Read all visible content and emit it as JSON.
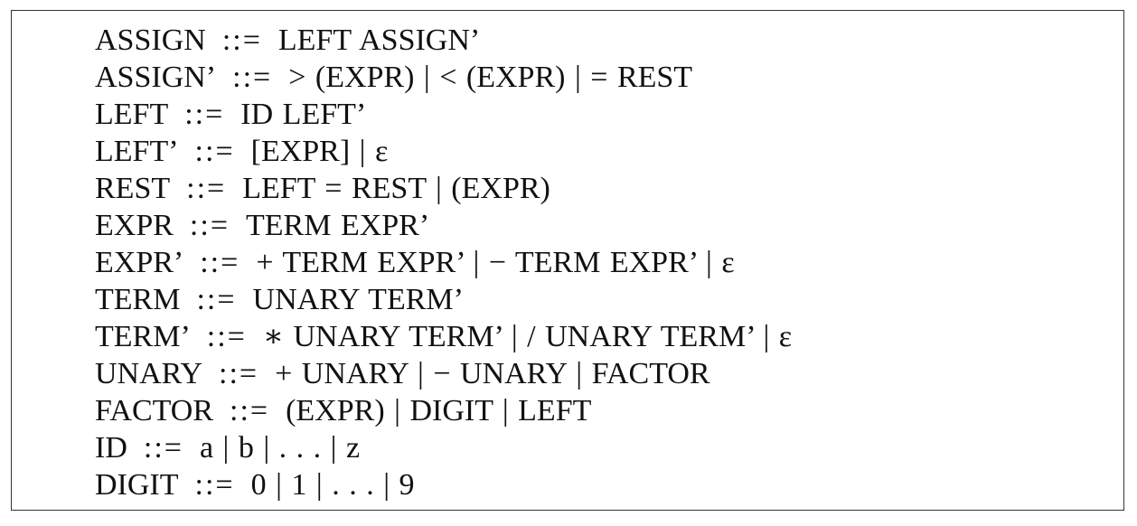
{
  "grammar": {
    "rules": [
      {
        "lhs": "ASSIGN",
        "op": "::=",
        "rhs": "LEFT  ASSIGN’"
      },
      {
        "lhs": "ASSIGN’",
        "op": "::=",
        "rhs": ">  (EXPR)   |  <  (EXPR)   |  =  REST"
      },
      {
        "lhs": "LEFT",
        "op": "::=",
        "rhs": "ID  LEFT’"
      },
      {
        "lhs": "LEFT’",
        "op": "::=",
        "rhs": "[EXPR]  |  ε"
      },
      {
        "lhs": "REST",
        "op": "::=",
        "rhs": "LEFT  =  REST  |  (EXPR)"
      },
      {
        "lhs": "EXPR",
        "op": "::=",
        "rhs": "TERM  EXPR’"
      },
      {
        "lhs": "EXPR’",
        "op": "::=",
        "rhs": "+  TERM  EXPR’   |  −  TERM  EXPR’   |  ε"
      },
      {
        "lhs": "TERM",
        "op": "::=",
        "rhs": "UNARY  TERM’"
      },
      {
        "lhs": "TERM’",
        "op": "::=",
        "rhs": "∗  UNARY  TERM’   |  /  UNARY  TERM’   |  ε"
      },
      {
        "lhs": "UNARY",
        "op": "::=",
        "rhs": "+  UNARY  |  −  UNARY  |  FACTOR"
      },
      {
        "lhs": "FACTOR",
        "op": "::=",
        "rhs": "(EXPR)  |  DIGIT  |  LEFT"
      },
      {
        "lhs": "ID",
        "op": "::=",
        "rhs": "a  |  b  |   . . .   |  z"
      },
      {
        "lhs": "DIGIT",
        "op": "::=",
        "rhs": "0  |  1  |   . . .   |  9"
      }
    ]
  }
}
